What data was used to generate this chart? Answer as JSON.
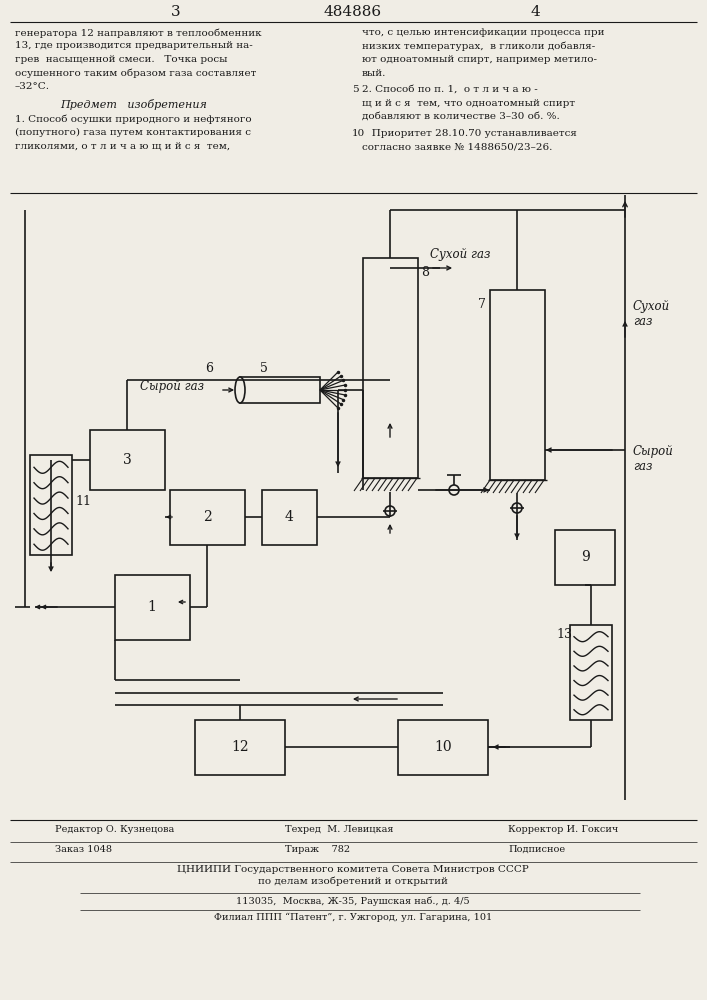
{
  "title": "484886",
  "page_left": "3",
  "page_right": "4",
  "bg_color": "#f0ede5",
  "text_color": "#1a1a1a",
  "left_col_lines": [
    "генератора 12 направляют в теплообменник",
    "13, где производится предварительный на-",
    "грев  насыщенной смеси.   Точка росы",
    "осушенного таким образом газа составляет",
    "–32°С."
  ],
  "predmet_title": "Предмет   изобретения",
  "item1_lines": [
    "1. Способ осушки природного и нефтяного",
    "(попутного) газа путем контактирования с",
    "гликолями, о т л и ч а ю щ и й с я  тем,"
  ],
  "right_col1_lines": [
    "что, с целью интенсификации процесса при",
    "низких температурах,  в гликоли добавля-",
    "ют одноатомный спирт, например метило-",
    "вый."
  ],
  "item2_lines": [
    "2. Способ по п. 1,  о т л и ч а ю -",
    "щ и й с я  тем, что одноатомный спирт",
    "добавляют в количестве 3–30 об. %."
  ],
  "priority_lines": [
    "   Приоритет 28.10.70 устанавливается",
    "согласно заявке № 1488650/23–26."
  ],
  "syroi_gaz": "Сырой газ",
  "sukhoi_gaz_top": "Сухой газ",
  "sukhoi_gaz_right": "Сухой\nгаз",
  "syroi_gaz_right": "Сырой\nгаз",
  "footer_editor": "Редактор О. Кузнецова",
  "footer_techred": "Техред  М. Левицкая",
  "footer_corrector": "Корректор И. Гоксич",
  "footer_order": "Заказ 1048",
  "footer_tirazh": "Тираж    782",
  "footer_podpisno": "Подписное",
  "footer_org1": "ЦНИИПИ Государственного комитета Совета Министров СССР",
  "footer_org2": "по делам изобретений и открытий",
  "footer_addr": "113035,  Москва, Ж-35, Раушская наб., д. 4/5",
  "footer_filial": "Филиал ППП “Патент”, г. Ужгород, ул. Гагарина, 101"
}
